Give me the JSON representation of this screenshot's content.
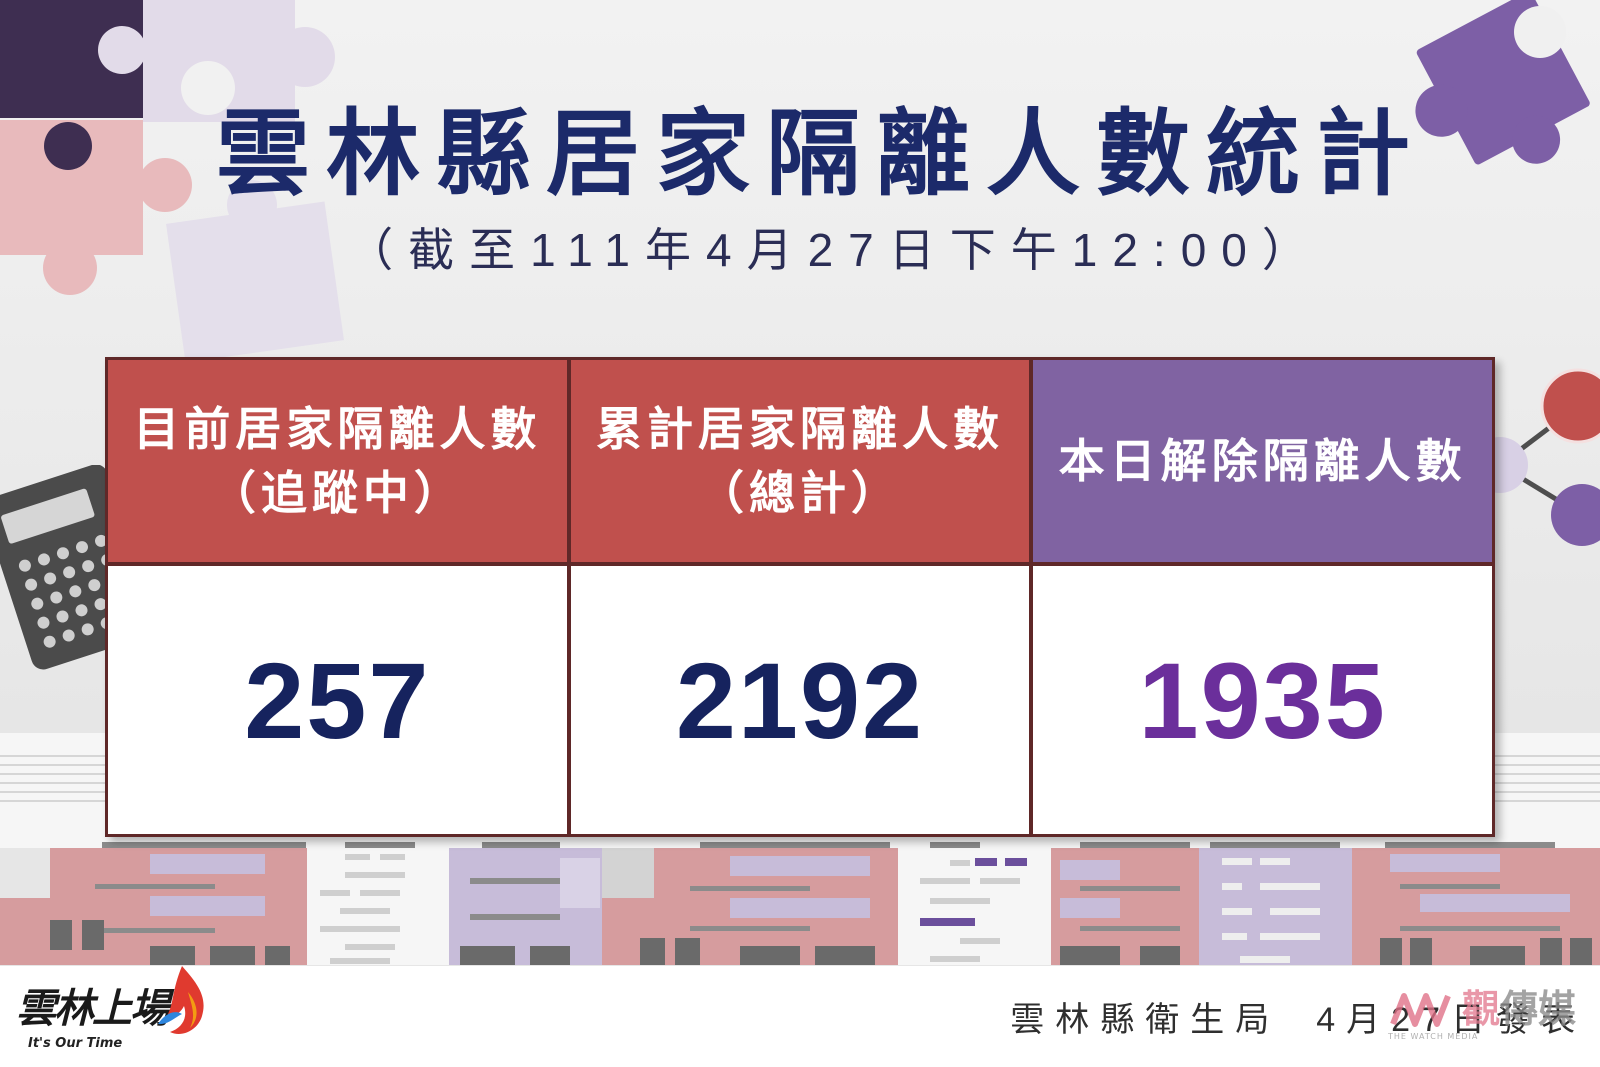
{
  "title": "雲林縣居家隔離人數統計",
  "subtitle": "（截至111年4月27日下午12:00）",
  "table": {
    "columns": [
      {
        "header_line1": "目前居家隔離人數",
        "header_line2": "（追蹤中）",
        "value": 257,
        "header_color": "#c0504d",
        "value_color": "#16235e"
      },
      {
        "header_line1": "累計居家隔離人數",
        "header_line2": "（總計）",
        "value": 2192,
        "header_color": "#c0504d",
        "value_color": "#16235e"
      },
      {
        "header_line1": "本日解除隔離人數",
        "value": 1935,
        "header_color": "#8063a2",
        "value_color": "#6b2f9b"
      }
    ]
  },
  "footer": {
    "publisher": "雲林縣衛生局",
    "date": "4月27日發表"
  },
  "logo": {
    "name": "雲林上場",
    "tagline": "It's Our Time",
    "icon": "flame-icon"
  },
  "watermark": {
    "name": "觀傳媒",
    "tagline": "THE WATCH MEDIA",
    "icon": "wm-logo-icon"
  },
  "colors": {
    "title": "#1c2a6a",
    "subtitle": "#2a2d55",
    "table_border": "#5f2828",
    "accent_red": "#c0504d",
    "accent_purple": "#7d5fa6",
    "accent_pink": "#e8babc",
    "accent_dark_purple": "#3e2e51"
  }
}
